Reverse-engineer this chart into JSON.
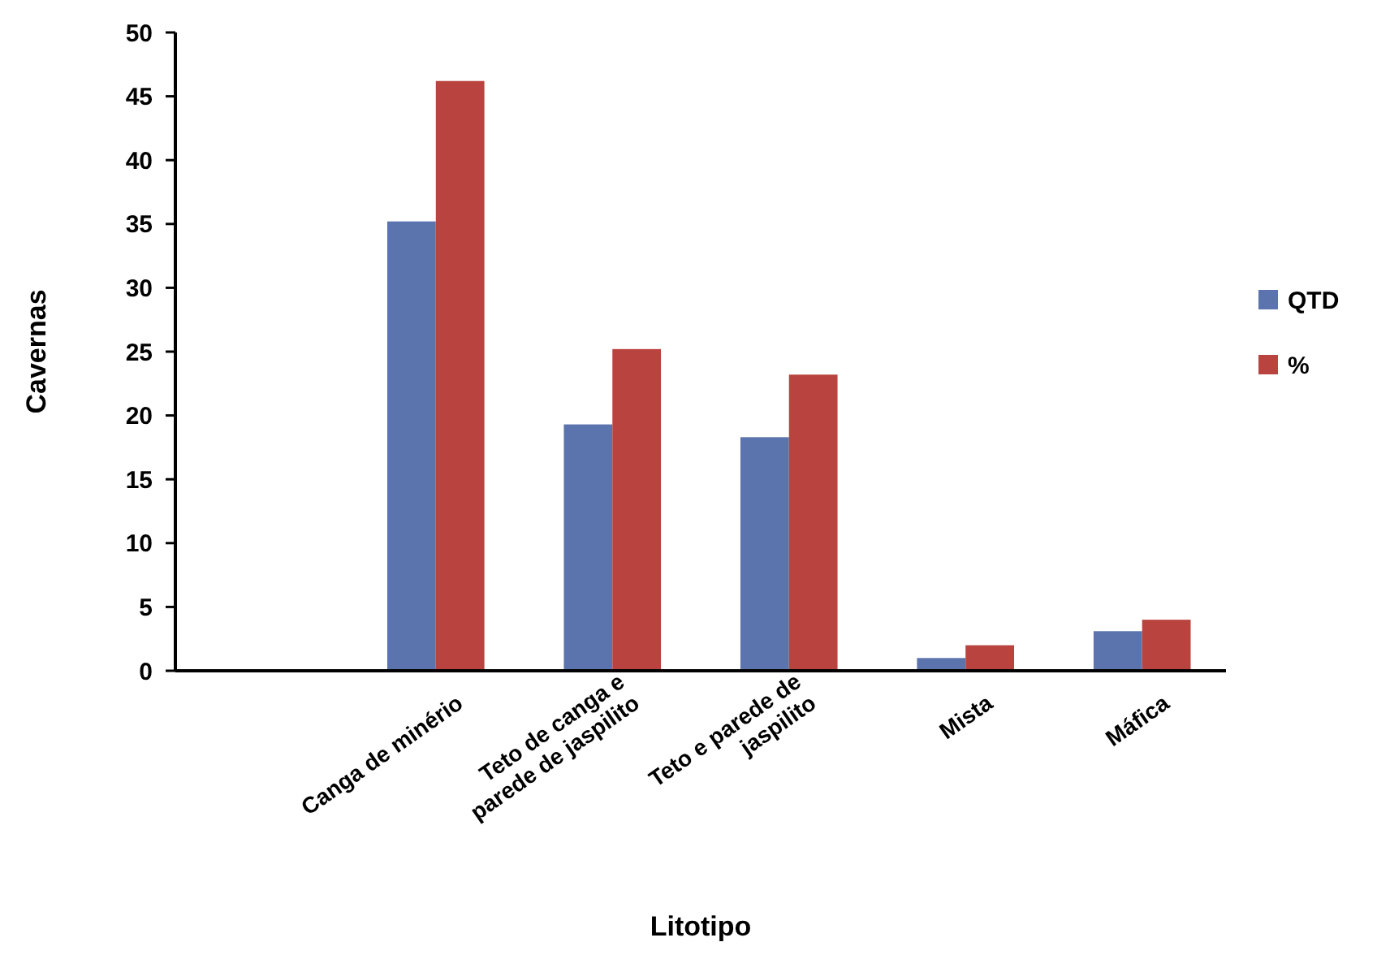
{
  "chart_data": {
    "type": "bar",
    "xlabel": "Litotipo",
    "ylabel": "Cavernas",
    "categories": [
      null,
      "Canga de minério",
      "Teto de canga e parede de jaspilito",
      "Teto e parede de jaspilito",
      "Mista",
      "Máfica"
    ],
    "series": [
      {
        "name": "QTD",
        "color": "#5b74ad",
        "values": [
          null,
          35.2,
          19.3,
          18.3,
          1.0,
          3.1
        ]
      },
      {
        "name": "%",
        "color": "#b9443f",
        "values": [
          null,
          46.2,
          25.2,
          23.2,
          2.0,
          4.0
        ]
      }
    ],
    "ylim": [
      0,
      50
    ],
    "yticks": [
      0,
      5,
      10,
      15,
      20,
      25,
      30,
      35,
      40,
      45,
      50
    ],
    "legend": "right",
    "grid": false
  }
}
